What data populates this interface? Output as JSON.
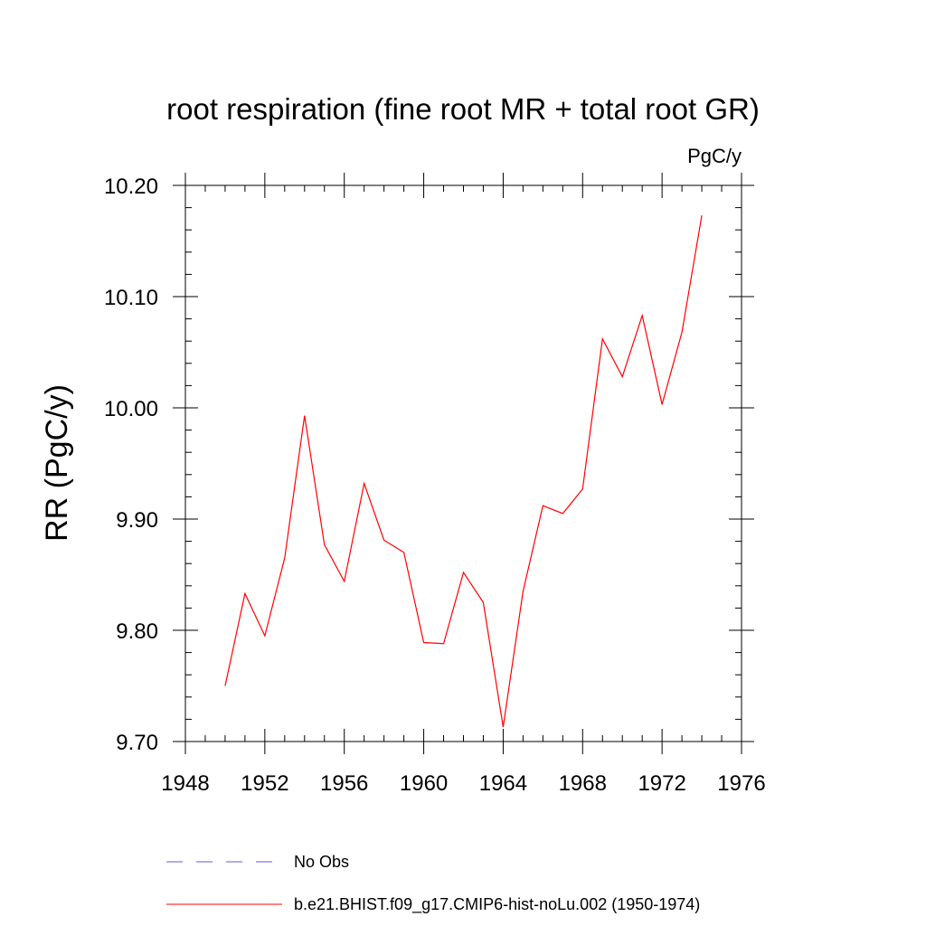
{
  "chart_data": {
    "type": "line",
    "title": "root respiration (fine root MR + total root GR)",
    "units": "PgC/y",
    "xlabel": "",
    "ylabel": "RR  (PgC/y)",
    "xlim": [
      1948,
      1976
    ],
    "ylim": [
      9.7,
      10.2
    ],
    "x_ticks": [
      1948,
      1952,
      1956,
      1960,
      1964,
      1968,
      1972,
      1976
    ],
    "x_tick_labels": [
      "1948",
      "1952",
      "1956",
      "1960",
      "1964",
      "1968",
      "1972",
      "1976"
    ],
    "y_ticks": [
      9.7,
      9.8,
      9.9,
      10.0,
      10.1,
      10.2
    ],
    "y_tick_labels": [
      "9.70",
      "9.80",
      "9.90",
      "10.00",
      "10.10",
      "10.20"
    ],
    "x_minor_step": 1,
    "y_minor_step": 0.02,
    "grid": false,
    "series": [
      {
        "name": "No Obs",
        "color": "#6a5acd",
        "dash": "dashed",
        "x": [],
        "values": []
      },
      {
        "name": "b.e21.BHIST.f09_g17.CMIP6-hist-noLu.002 (1950-1974)",
        "color": "#ff0000",
        "dash": "solid",
        "x": [
          1950,
          1951,
          1952,
          1953,
          1954,
          1955,
          1956,
          1957,
          1958,
          1959,
          1960,
          1961,
          1962,
          1963,
          1964,
          1965,
          1966,
          1967,
          1968,
          1969,
          1970,
          1971,
          1972,
          1973,
          1974
        ],
        "values": [
          9.75,
          9.833,
          9.795,
          9.865,
          9.993,
          9.877,
          9.844,
          9.932,
          9.881,
          9.87,
          9.789,
          9.788,
          9.852,
          9.825,
          9.713,
          9.835,
          9.912,
          9.905,
          9.927,
          10.062,
          10.028,
          10.083,
          10.003,
          10.068,
          10.173
        ]
      }
    ],
    "legend": {
      "placement": "bottom",
      "entries": [
        {
          "label": "No Obs",
          "color": "#6a5acd",
          "dash": "dashed"
        },
        {
          "label": "b.e21.BHIST.f09_g17.CMIP6-hist-noLu.002 (1950-1974)",
          "color": "#ff0000",
          "dash": "solid"
        }
      ]
    }
  }
}
